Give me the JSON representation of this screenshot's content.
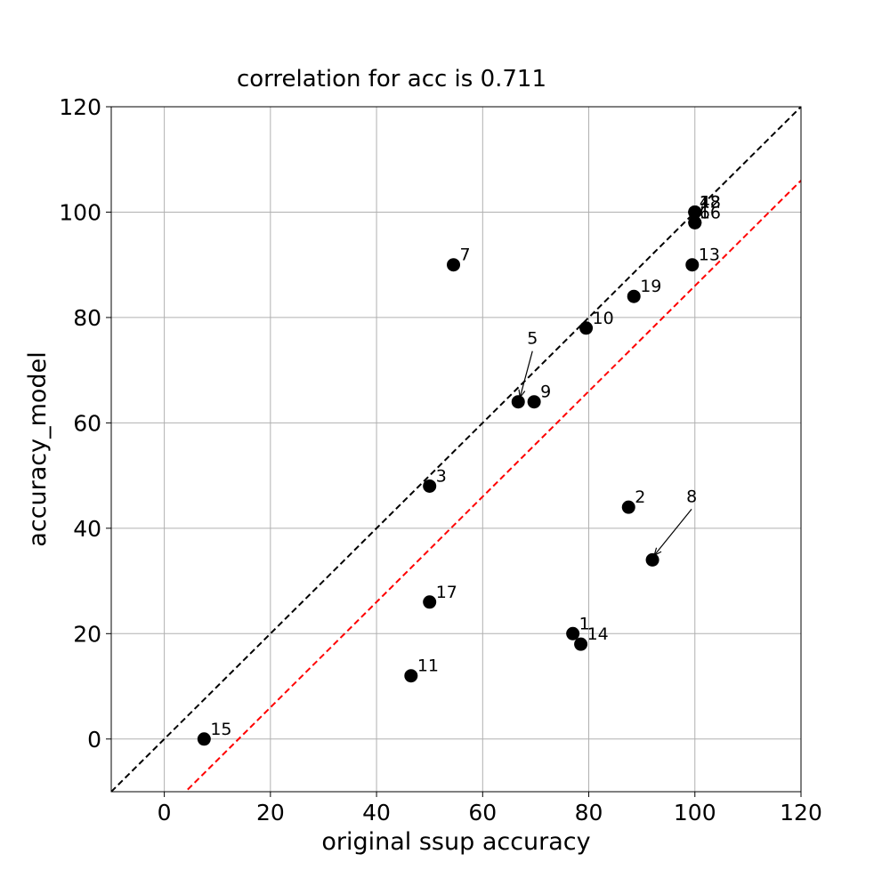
{
  "chart_data": {
    "type": "scatter",
    "title": "correlation for acc is 0.711",
    "xlabel": "original ssup accuracy",
    "ylabel": "accuracy_model",
    "xlim": [
      -10,
      120
    ],
    "ylim": [
      -10,
      120
    ],
    "xticks": [
      0,
      20,
      40,
      60,
      80,
      100,
      120
    ],
    "yticks": [
      0,
      20,
      40,
      60,
      80,
      100,
      120
    ],
    "grid": true,
    "colors": {
      "points": "#000000",
      "identity_line": "#000000",
      "offset_line": "#ff0000",
      "grid": "#b0b0b0"
    },
    "points": [
      {
        "label": "1",
        "x": 77,
        "y": 20
      },
      {
        "label": "2",
        "x": 87.5,
        "y": 44
      },
      {
        "label": "3",
        "x": 50,
        "y": 48
      },
      {
        "label": "4",
        "x": 100,
        "y": 100
      },
      {
        "label": "5",
        "x": 66.7,
        "y": 64
      },
      {
        "label": "6",
        "x": 100,
        "y": 98
      },
      {
        "label": "7",
        "x": 54.5,
        "y": 90
      },
      {
        "label": "8",
        "x": 92,
        "y": 34
      },
      {
        "label": "9",
        "x": 69.7,
        "y": 64
      },
      {
        "label": "10",
        "x": 79.5,
        "y": 78
      },
      {
        "label": "11",
        "x": 46.5,
        "y": 12
      },
      {
        "label": "12",
        "x": 100,
        "y": 100
      },
      {
        "label": "13",
        "x": 99.5,
        "y": 90
      },
      {
        "label": "14",
        "x": 78.5,
        "y": 18
      },
      {
        "label": "15",
        "x": 7.5,
        "y": 0
      },
      {
        "label": "16",
        "x": 100,
        "y": 98
      },
      {
        "label": "17",
        "x": 50,
        "y": 26
      },
      {
        "label": "18",
        "x": 100,
        "y": 100
      },
      {
        "label": "19",
        "x": 88.5,
        "y": 84
      }
    ],
    "reference_lines": [
      {
        "style": "dashed",
        "color": "#000000",
        "slope": 1,
        "intercept": 0
      },
      {
        "style": "dashed",
        "color": "#ff0000",
        "slope": 1,
        "intercept": -14
      }
    ]
  }
}
